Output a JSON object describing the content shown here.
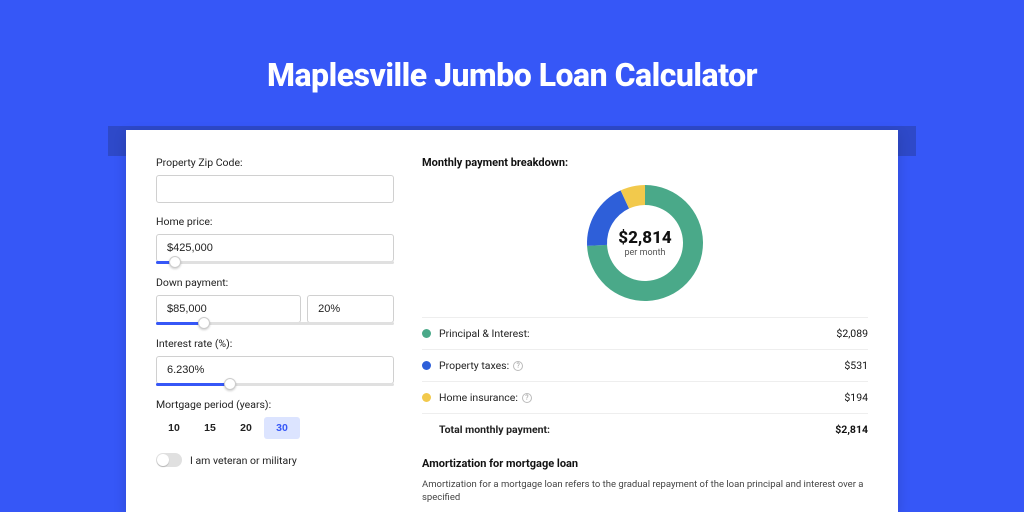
{
  "colors": {
    "page_bg": "#3657f7",
    "shadow_bar": "#2e49c9",
    "card_bg": "#ffffff",
    "accent": "#3657f7",
    "period_active_bg": "#dce4ff",
    "slider_track": "#e0e0e0",
    "border": "#d0d0d0"
  },
  "title": "Maplesville Jumbo Loan Calculator",
  "form": {
    "zip_label": "Property Zip Code:",
    "zip_value": "",
    "home_price_label": "Home price:",
    "home_price_value": "$425,000",
    "home_price_slider_pct": 8,
    "down_payment_label": "Down payment:",
    "down_payment_value": "$85,000",
    "down_payment_pct_value": "20%",
    "down_payment_slider_pct": 20,
    "interest_label": "Interest rate (%):",
    "interest_value": "6.230%",
    "interest_slider_pct": 31,
    "period_label": "Mortgage period (years):",
    "period_options": [
      "10",
      "15",
      "20",
      "30"
    ],
    "period_active_index": 3,
    "veteran_label": "I am veteran or military",
    "veteran_on": false
  },
  "breakdown": {
    "title": "Monthly payment breakdown:",
    "center_amount": "$2,814",
    "center_sub": "per month",
    "donut": {
      "size": 120,
      "thickness": 20,
      "slices": [
        {
          "label": "Principal & Interest:",
          "value": "$2,089",
          "pct": 74.2,
          "color": "#4aa989",
          "has_help": false
        },
        {
          "label": "Property taxes:",
          "value": "$531",
          "pct": 18.9,
          "color": "#2e5fd9",
          "has_help": true
        },
        {
          "label": "Home insurance:",
          "value": "$194",
          "pct": 6.9,
          "color": "#f2c94c",
          "has_help": true
        }
      ]
    },
    "total_label": "Total monthly payment:",
    "total_value": "$2,814"
  },
  "amortization": {
    "title": "Amortization for mortgage loan",
    "text": "Amortization for a mortgage loan refers to the gradual repayment of the loan principal and interest over a specified"
  }
}
